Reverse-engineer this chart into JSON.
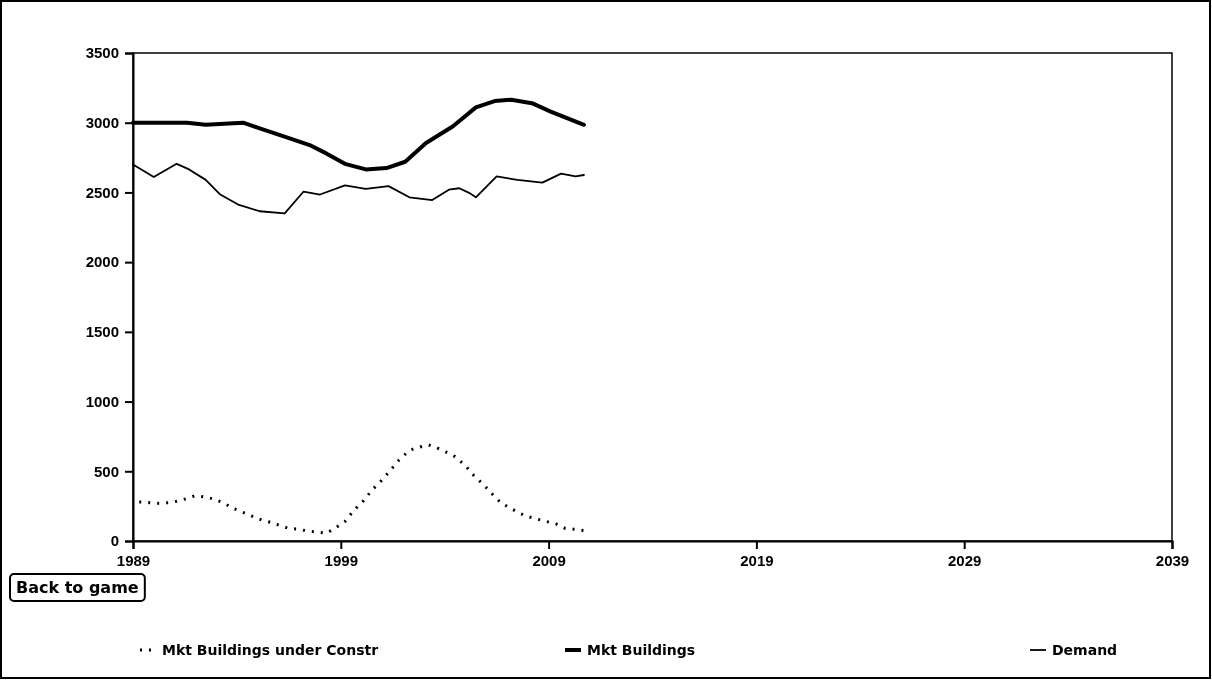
{
  "chart_data": {
    "type": "line",
    "xlim": [
      1989,
      2039
    ],
    "xticks": [
      1989,
      1999,
      2009,
      2019,
      2029,
      2039
    ],
    "ylim": [
      0,
      3500
    ],
    "yticks": [
      0,
      500,
      1000,
      1500,
      2000,
      2500,
      3000,
      3500
    ],
    "grid": false,
    "legend": "bottom",
    "marker": "none",
    "annotations": [
      "Back to game"
    ],
    "series": [
      {
        "name": "Mkt Buildings under Constr",
        "color": "#000000",
        "line_style": "dotted",
        "x": [
          1989.3,
          1989.8,
          1990.2,
          1990.7,
          1991.1,
          1991.6,
          1992.0,
          1992.5,
          1992.9,
          1993.4,
          1993.8,
          1994.3,
          1994.7,
          1995.2,
          1995.6,
          1996.1,
          1996.5,
          1997.0,
          1997.4,
          1997.9,
          1998.3,
          1998.7,
          1999.2,
          1999.6,
          2000.1,
          2000.5,
          2001.0,
          2001.4,
          2001.8,
          2002.3,
          2002.7,
          2003.2,
          2003.6,
          2004.1,
          2004.5,
          2005.0,
          2005.4,
          2005.9,
          2006.3,
          2006.7,
          2007.1,
          2007.6,
          2008.0,
          2008.5,
          2008.9,
          2009.4,
          2009.8,
          2010.2,
          2010.7
        ],
        "values": [
          280,
          275,
          270,
          275,
          285,
          305,
          325,
          315,
          300,
          270,
          235,
          205,
          180,
          150,
          135,
          110,
          90,
          85,
          70,
          65,
          55,
          90,
          140,
          215,
          290,
          365,
          440,
          510,
          580,
          650,
          670,
          690,
          670,
          635,
          605,
          540,
          470,
          400,
          335,
          275,
          240,
          200,
          175,
          155,
          140,
          120,
          90,
          85,
          75
        ]
      },
      {
        "name": "Mkt Buildings",
        "color": "#000000",
        "line_style": "solid",
        "x": [
          1989.0,
          1991.6,
          1992.5,
          1994.3,
          1995.1,
          1996.4,
          1997.5,
          1998.3,
          1999.2,
          2000.2,
          2001.2,
          2002.1,
          2003.1,
          2004.4,
          2005.5,
          2006.4,
          2007.2,
          2008.2,
          2009.1,
          2010.1,
          2010.7
        ],
        "values": [
          3000,
          3000,
          2985,
          3000,
          2960,
          2895,
          2840,
          2780,
          2705,
          2665,
          2675,
          2720,
          2855,
          2975,
          3110,
          3155,
          3165,
          3140,
          3080,
          3020,
          2985
        ]
      },
      {
        "name": "Demand",
        "color": "#000000",
        "line_style": "solid",
        "x": [
          1989.0,
          1990.0,
          1991.1,
          1991.7,
          1992.5,
          1993.2,
          1994.1,
          1995.1,
          1996.3,
          1997.2,
          1998.0,
          1999.2,
          2000.2,
          2001.3,
          2002.3,
          2003.4,
          2004.2,
          2004.7,
          2005.2,
          2005.5,
          2006.5,
          2007.5,
          2008.7,
          2009.6,
          2010.3,
          2010.7
        ],
        "values": [
          2700,
          2610,
          2705,
          2665,
          2590,
          2485,
          2410,
          2365,
          2350,
          2505,
          2485,
          2550,
          2525,
          2545,
          2465,
          2445,
          2520,
          2530,
          2495,
          2465,
          2615,
          2590,
          2570,
          2635,
          2615,
          2625
        ]
      }
    ]
  }
}
